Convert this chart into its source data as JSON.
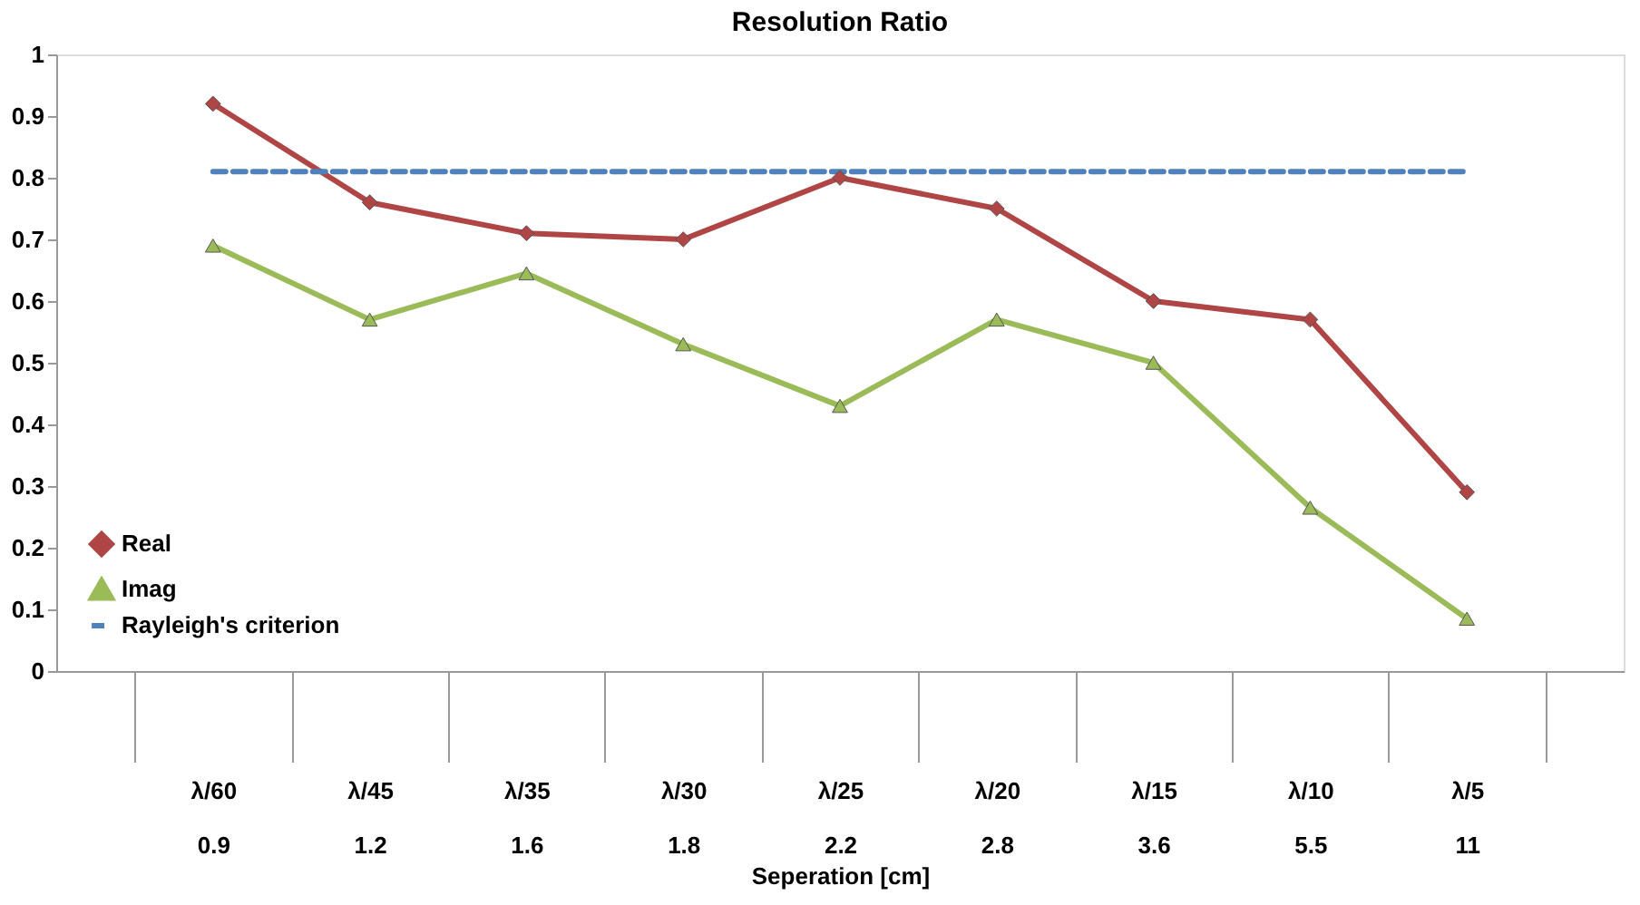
{
  "chart_data": {
    "type": "line",
    "title": "Resolution Ratio",
    "xlabel": "Seperation [cm]",
    "categories": [
      "λ/60\n0.9",
      "λ/45\n1.2",
      "λ/35\n1.6",
      "λ/30\n1.8",
      "λ/25\n2.2",
      "λ/20\n2.8",
      "λ/15\n3.6",
      "λ/10\n5.5",
      "λ/5\n11"
    ],
    "series": [
      {
        "name": "Real",
        "color": "#b04545",
        "marker": "diamond",
        "line_style": "solid",
        "values": [
          0.92,
          0.76,
          0.71,
          0.7,
          0.8,
          0.75,
          0.6,
          0.57,
          0.29
        ]
      },
      {
        "name": "Imag",
        "color": "#9bbb59",
        "marker": "triangle",
        "line_style": "solid",
        "values": [
          0.69,
          0.57,
          0.645,
          0.53,
          0.43,
          0.57,
          0.5,
          0.265,
          0.085
        ]
      },
      {
        "name": "Rayleigh's criterion",
        "color": "#4f81bd",
        "marker": "none",
        "line_style": "dashed",
        "values": [
          0.81,
          0.81,
          0.81,
          0.81,
          0.81,
          0.81,
          0.81,
          0.81,
          0.81
        ]
      }
    ],
    "ylim": [
      0,
      1
    ],
    "yticks": [
      0,
      0.1,
      0.2,
      0.3,
      0.4,
      0.5,
      0.6,
      0.7,
      0.8,
      0.9,
      1
    ],
    "grid": false,
    "legend": "bottom left"
  }
}
